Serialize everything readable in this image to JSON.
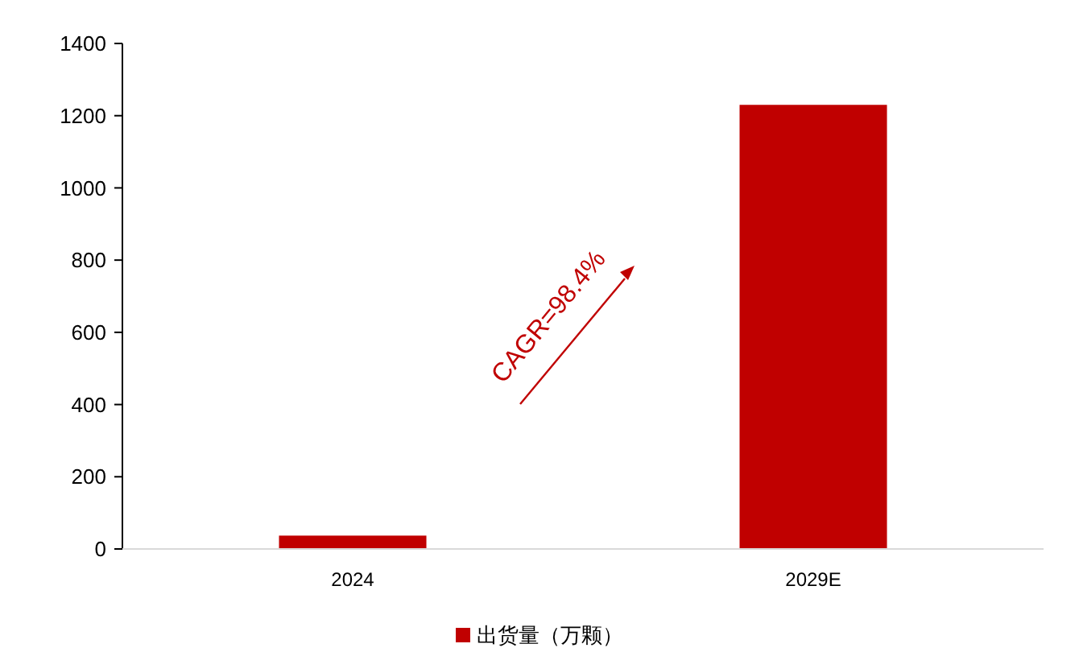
{
  "chart_data": {
    "type": "bar",
    "categories": [
      "2024",
      "2029E"
    ],
    "series": [
      {
        "name": "出货量（万颗）",
        "color": "#c00000",
        "values": [
          37,
          1230
        ]
      }
    ],
    "ylim": [
      0,
      1400
    ],
    "yticks": [
      0,
      200,
      400,
      600,
      800,
      1000,
      1200,
      1400
    ],
    "grid": false,
    "legend": "bottom",
    "annotations": [
      "CAGR=98.4%"
    ]
  }
}
